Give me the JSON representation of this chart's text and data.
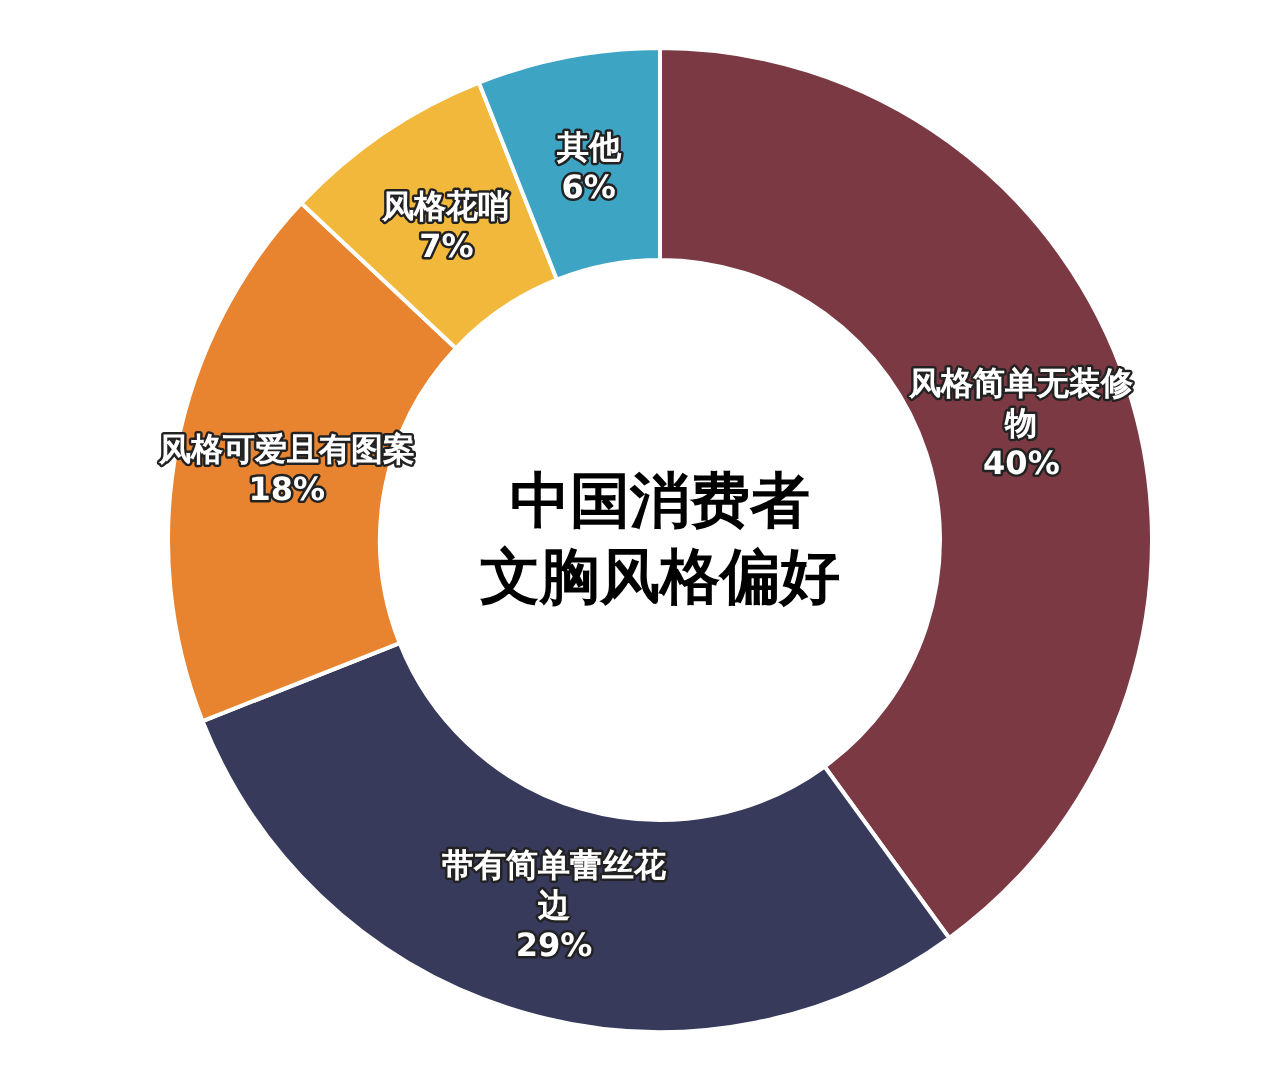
{
  "chart_data": {
    "type": "donut",
    "title": "中国消费者文胸风格偏好",
    "categories": [
      "风格简单无装修物",
      "带有简单蕾丝花边",
      "风格可爱且有图案",
      "风格花哨",
      "其他"
    ],
    "values": [
      40,
      29,
      18,
      7,
      6
    ],
    "value_labels": [
      "40%",
      "29%",
      "18%",
      "7%",
      "6%"
    ],
    "colors": [
      "#7b3a43",
      "#383a5c",
      "#e8842f",
      "#f2b83c",
      "#3da4c4"
    ]
  }
}
